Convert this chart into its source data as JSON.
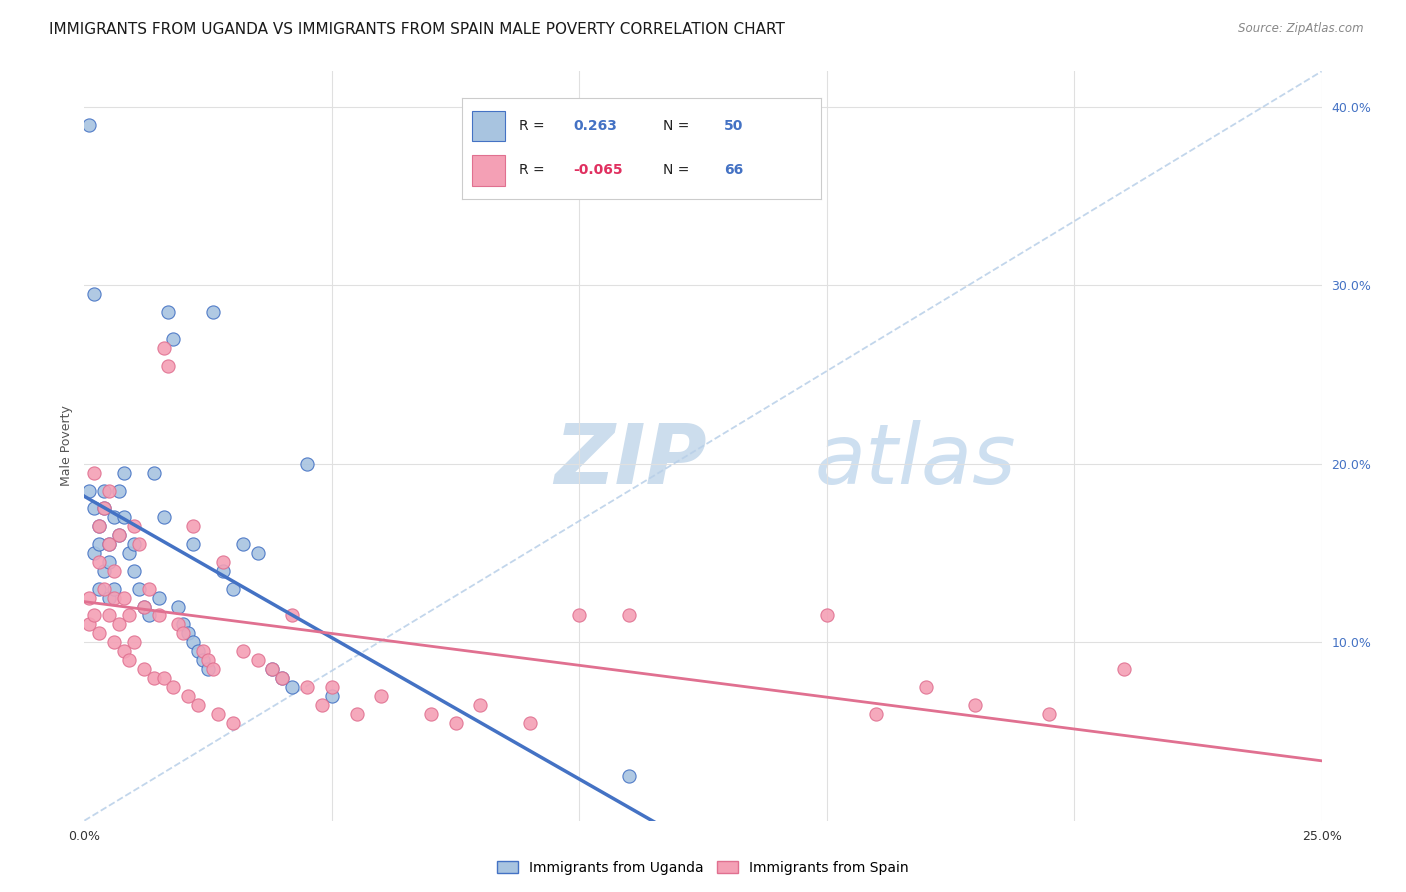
{
  "title": "IMMIGRANTS FROM UGANDA VS IMMIGRANTS FROM SPAIN MALE POVERTY CORRELATION CHART",
  "source": "Source: ZipAtlas.com",
  "ylabel": "Male Poverty",
  "r_uganda": 0.263,
  "n_uganda": 50,
  "r_spain": -0.065,
  "n_spain": 66,
  "uganda_color": "#a8c4e0",
  "spain_color": "#f4a0b5",
  "uganda_line_color": "#4472c4",
  "spain_line_color": "#e07090",
  "dashed_line_color": "#b8cfe8",
  "xlim": [
    0.0,
    0.25
  ],
  "ylim": [
    0.0,
    0.42
  ],
  "y_ticks": [
    0.1,
    0.2,
    0.3,
    0.4
  ],
  "y_tick_labels": [
    "10.0%",
    "20.0%",
    "30.0%",
    "40.0%"
  ],
  "x_ticks": [
    0.0,
    0.05,
    0.1,
    0.15,
    0.2,
    0.25
  ],
  "x_tick_labels": [
    "0.0%",
    "",
    "",
    "",
    "",
    "25.0%"
  ],
  "uganda_scatter_x": [
    0.001,
    0.001,
    0.002,
    0.002,
    0.002,
    0.003,
    0.003,
    0.003,
    0.004,
    0.004,
    0.004,
    0.005,
    0.005,
    0.005,
    0.006,
    0.006,
    0.007,
    0.007,
    0.008,
    0.008,
    0.009,
    0.01,
    0.01,
    0.011,
    0.012,
    0.013,
    0.014,
    0.015,
    0.016,
    0.017,
    0.018,
    0.019,
    0.02,
    0.021,
    0.022,
    0.022,
    0.023,
    0.024,
    0.025,
    0.026,
    0.028,
    0.03,
    0.032,
    0.035,
    0.038,
    0.042,
    0.045,
    0.05,
    0.11,
    0.04
  ],
  "uganda_scatter_y": [
    0.39,
    0.185,
    0.295,
    0.175,
    0.15,
    0.165,
    0.155,
    0.13,
    0.185,
    0.175,
    0.14,
    0.155,
    0.145,
    0.125,
    0.17,
    0.13,
    0.185,
    0.16,
    0.195,
    0.17,
    0.15,
    0.155,
    0.14,
    0.13,
    0.12,
    0.115,
    0.195,
    0.125,
    0.17,
    0.285,
    0.27,
    0.12,
    0.11,
    0.105,
    0.1,
    0.155,
    0.095,
    0.09,
    0.085,
    0.285,
    0.14,
    0.13,
    0.155,
    0.15,
    0.085,
    0.075,
    0.2,
    0.07,
    0.025,
    0.08
  ],
  "spain_scatter_x": [
    0.001,
    0.001,
    0.002,
    0.002,
    0.003,
    0.003,
    0.003,
    0.004,
    0.004,
    0.005,
    0.005,
    0.005,
    0.006,
    0.006,
    0.006,
    0.007,
    0.007,
    0.008,
    0.008,
    0.009,
    0.009,
    0.01,
    0.01,
    0.011,
    0.012,
    0.012,
    0.013,
    0.014,
    0.015,
    0.016,
    0.016,
    0.017,
    0.018,
    0.019,
    0.02,
    0.021,
    0.022,
    0.023,
    0.024,
    0.025,
    0.026,
    0.027,
    0.028,
    0.03,
    0.032,
    0.035,
    0.038,
    0.04,
    0.042,
    0.045,
    0.048,
    0.05,
    0.055,
    0.06,
    0.07,
    0.075,
    0.08,
    0.09,
    0.1,
    0.11,
    0.15,
    0.16,
    0.17,
    0.18,
    0.195,
    0.21
  ],
  "spain_scatter_y": [
    0.125,
    0.11,
    0.195,
    0.115,
    0.165,
    0.145,
    0.105,
    0.175,
    0.13,
    0.155,
    0.185,
    0.115,
    0.14,
    0.125,
    0.1,
    0.16,
    0.11,
    0.125,
    0.095,
    0.115,
    0.09,
    0.165,
    0.1,
    0.155,
    0.12,
    0.085,
    0.13,
    0.08,
    0.115,
    0.265,
    0.08,
    0.255,
    0.075,
    0.11,
    0.105,
    0.07,
    0.165,
    0.065,
    0.095,
    0.09,
    0.085,
    0.06,
    0.145,
    0.055,
    0.095,
    0.09,
    0.085,
    0.08,
    0.115,
    0.075,
    0.065,
    0.075,
    0.06,
    0.07,
    0.06,
    0.055,
    0.065,
    0.055,
    0.115,
    0.115,
    0.115,
    0.06,
    0.075,
    0.065,
    0.06,
    0.085
  ],
  "background_color": "#ffffff",
  "grid_color": "#e0e0e0",
  "title_fontsize": 11,
  "axis_label_fontsize": 9,
  "tick_fontsize": 9,
  "watermark_fontsize": 60
}
